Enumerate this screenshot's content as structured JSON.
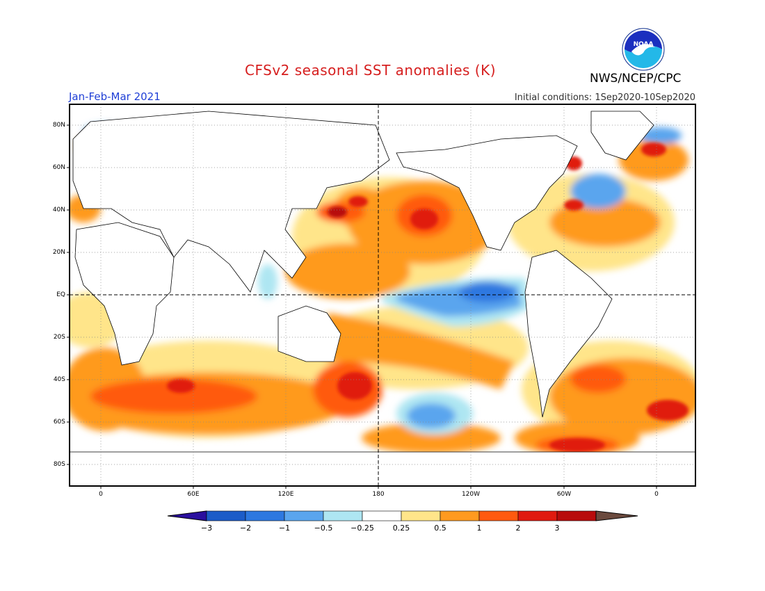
{
  "header": {
    "title": "CFSv2 seasonal SST anomalies (K)",
    "agency": "NWS/NCEP/CPC",
    "logo_text": "NOAA",
    "period": "Jan-Feb-Mar 2021",
    "initial_conditions": "Initial conditions: 1Sep2020-10Sep2020"
  },
  "axes": {
    "lat_labels": [
      "80N",
      "60N",
      "40N",
      "20N",
      "EQ",
      "20S",
      "40S",
      "60S",
      "80S"
    ],
    "lon_labels": [
      "0",
      "60E",
      "120E",
      "180",
      "120W",
      "60W",
      "0"
    ]
  },
  "colorbar": {
    "labels": [
      "-3",
      "-2",
      "-1",
      "-0.5",
      "-0.25",
      "0.25",
      "0.5",
      "1",
      "2",
      "3"
    ],
    "colors": {
      "below_min": "#2a0f9e",
      "bins": [
        "#1c5cc8",
        "#2d78e0",
        "#5aa5ee",
        "#aee6f2",
        "#ffffff",
        "#ffe58a",
        "#ff9a1f",
        "#ff5a0f",
        "#e01a0f",
        "#b80c0c"
      ],
      "above_max": "#6b4a3e"
    }
  },
  "colors": {
    "title": "#d61f1f",
    "period": "#1f3fd6"
  }
}
